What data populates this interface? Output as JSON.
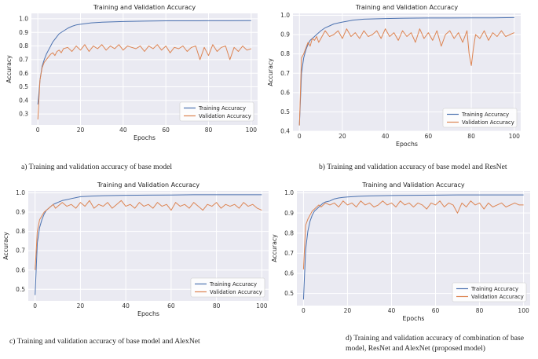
{
  "colors": {
    "training": "#4c72b0",
    "validation": "#dd8452"
  },
  "captions": [
    "a)     Training and validation accuracy of base model",
    "b) Training and validation accuracy of base model and ResNet",
    "c) Training and validation accuracy of base model and AlexNet",
    "d) Training and validation accuracy of combination of base model, ResNet and AlexNet (proposed model)"
  ],
  "chart_data": [
    {
      "type": "line",
      "title": "Training and Validation Accuracy",
      "xlabel": "Epochs",
      "ylabel": "Accuracy",
      "xlim": [
        -3,
        103
      ],
      "ylim": [
        0.22,
        1.04
      ],
      "xticks": [
        0,
        20,
        40,
        60,
        80,
        100
      ],
      "yticks": [
        0.3,
        0.4,
        0.5,
        0.6,
        0.7,
        0.8,
        0.9,
        1.0
      ],
      "legend_position": "bottom-right",
      "series": [
        {
          "name": "Training Accuracy",
          "x": [
            0,
            1,
            2,
            3,
            4,
            5,
            6,
            7,
            8,
            9,
            10,
            12,
            14,
            16,
            18,
            20,
            25,
            30,
            40,
            50,
            60,
            70,
            80,
            90,
            100
          ],
          "y": [
            0.37,
            0.55,
            0.65,
            0.7,
            0.74,
            0.77,
            0.8,
            0.83,
            0.85,
            0.87,
            0.89,
            0.91,
            0.93,
            0.945,
            0.955,
            0.96,
            0.97,
            0.975,
            0.98,
            0.983,
            0.985,
            0.985,
            0.986,
            0.986,
            0.987
          ]
        },
        {
          "name": "Validation Accuracy",
          "x": [
            0,
            1,
            2,
            3,
            4,
            5,
            6,
            7,
            8,
            9,
            10,
            11,
            12,
            14,
            16,
            18,
            20,
            22,
            24,
            26,
            28,
            30,
            32,
            34,
            36,
            38,
            40,
            42,
            44,
            46,
            48,
            50,
            52,
            54,
            56,
            58,
            60,
            62,
            64,
            66,
            68,
            70,
            72,
            74,
            76,
            78,
            80,
            82,
            84,
            86,
            88,
            90,
            92,
            94,
            96,
            98,
            100
          ],
          "y": [
            0.26,
            0.55,
            0.64,
            0.68,
            0.7,
            0.72,
            0.74,
            0.75,
            0.73,
            0.76,
            0.77,
            0.75,
            0.78,
            0.79,
            0.76,
            0.8,
            0.77,
            0.81,
            0.76,
            0.8,
            0.78,
            0.81,
            0.77,
            0.8,
            0.78,
            0.81,
            0.77,
            0.8,
            0.79,
            0.78,
            0.8,
            0.76,
            0.8,
            0.78,
            0.81,
            0.77,
            0.8,
            0.75,
            0.79,
            0.78,
            0.8,
            0.76,
            0.79,
            0.8,
            0.7,
            0.79,
            0.73,
            0.81,
            0.76,
            0.79,
            0.8,
            0.7,
            0.79,
            0.76,
            0.8,
            0.77,
            0.78
          ]
        }
      ]
    },
    {
      "type": "line",
      "title": "Training and Validation Accuracy",
      "xlabel": "Epochs",
      "ylabel": "Accuracy",
      "xlim": [
        -3,
        103
      ],
      "ylim": [
        0.4,
        1.01
      ],
      "xticks": [
        0,
        20,
        40,
        60,
        80,
        100
      ],
      "yticks": [
        0.4,
        0.5,
        0.6,
        0.7,
        0.8,
        0.9,
        1.0
      ],
      "legend_position": "bottom-right",
      "series": [
        {
          "name": "Training Accuracy",
          "x": [
            0,
            1,
            2,
            3,
            4,
            5,
            6,
            7,
            8,
            9,
            10,
            12,
            14,
            16,
            18,
            20,
            25,
            30,
            40,
            50,
            60,
            70,
            80,
            90,
            100
          ],
          "y": [
            0.43,
            0.7,
            0.78,
            0.82,
            0.85,
            0.87,
            0.88,
            0.89,
            0.9,
            0.91,
            0.92,
            0.935,
            0.945,
            0.955,
            0.96,
            0.965,
            0.975,
            0.98,
            0.983,
            0.985,
            0.986,
            0.986,
            0.987,
            0.987,
            0.988
          ]
        },
        {
          "name": "Validation Accuracy",
          "x": [
            0,
            1,
            2,
            3,
            4,
            5,
            6,
            7,
            8,
            9,
            10,
            12,
            14,
            16,
            18,
            20,
            22,
            24,
            26,
            28,
            30,
            32,
            34,
            36,
            38,
            40,
            42,
            44,
            46,
            48,
            50,
            52,
            54,
            56,
            58,
            60,
            62,
            64,
            66,
            68,
            70,
            72,
            74,
            76,
            78,
            79,
            80,
            81,
            82,
            84,
            86,
            88,
            90,
            92,
            94,
            96,
            98,
            100
          ],
          "y": [
            0.43,
            0.78,
            0.8,
            0.83,
            0.86,
            0.84,
            0.88,
            0.87,
            0.89,
            0.86,
            0.88,
            0.92,
            0.89,
            0.9,
            0.92,
            0.88,
            0.93,
            0.89,
            0.91,
            0.88,
            0.92,
            0.89,
            0.9,
            0.92,
            0.88,
            0.93,
            0.89,
            0.91,
            0.87,
            0.92,
            0.89,
            0.91,
            0.86,
            0.93,
            0.88,
            0.91,
            0.87,
            0.92,
            0.84,
            0.9,
            0.92,
            0.88,
            0.91,
            0.86,
            0.92,
            0.8,
            0.74,
            0.83,
            0.9,
            0.88,
            0.92,
            0.87,
            0.91,
            0.89,
            0.92,
            0.89,
            0.9,
            0.91
          ]
        }
      ]
    },
    {
      "type": "line",
      "title": "Training and Validation Accuracy",
      "xlabel": "Epochs",
      "ylabel": "Accuracy",
      "xlim": [
        -3,
        103
      ],
      "ylim": [
        0.44,
        1.01
      ],
      "xticks": [
        0,
        20,
        40,
        60,
        80,
        100
      ],
      "yticks": [
        0.5,
        0.6,
        0.7,
        0.8,
        0.9,
        1.0
      ],
      "legend_position": "bottom-right",
      "series": [
        {
          "name": "Training Accuracy",
          "x": [
            0,
            1,
            2,
            3,
            4,
            5,
            6,
            7,
            8,
            9,
            10,
            12,
            14,
            16,
            18,
            20,
            25,
            30,
            40,
            50,
            60,
            70,
            80,
            90,
            100
          ],
          "y": [
            0.47,
            0.74,
            0.82,
            0.86,
            0.89,
            0.91,
            0.92,
            0.93,
            0.94,
            0.945,
            0.95,
            0.96,
            0.965,
            0.97,
            0.975,
            0.98,
            0.983,
            0.985,
            0.987,
            0.988,
            0.989,
            0.99,
            0.99,
            0.99,
            0.99
          ]
        },
        {
          "name": "Validation Accuracy",
          "x": [
            0,
            1,
            2,
            3,
            4,
            5,
            6,
            7,
            8,
            9,
            10,
            12,
            14,
            16,
            18,
            20,
            22,
            24,
            26,
            28,
            30,
            32,
            34,
            36,
            38,
            40,
            42,
            44,
            46,
            48,
            50,
            52,
            54,
            56,
            58,
            60,
            62,
            64,
            66,
            68,
            70,
            72,
            74,
            76,
            78,
            80,
            82,
            84,
            86,
            88,
            90,
            92,
            94,
            96,
            98,
            100
          ],
          "y": [
            0.6,
            0.8,
            0.86,
            0.88,
            0.9,
            0.91,
            0.92,
            0.93,
            0.94,
            0.92,
            0.93,
            0.95,
            0.93,
            0.94,
            0.92,
            0.95,
            0.93,
            0.96,
            0.92,
            0.94,
            0.93,
            0.95,
            0.92,
            0.94,
            0.96,
            0.93,
            0.94,
            0.92,
            0.95,
            0.93,
            0.94,
            0.92,
            0.95,
            0.93,
            0.94,
            0.91,
            0.95,
            0.93,
            0.94,
            0.92,
            0.95,
            0.93,
            0.91,
            0.94,
            0.93,
            0.95,
            0.92,
            0.94,
            0.93,
            0.94,
            0.92,
            0.95,
            0.93,
            0.94,
            0.92,
            0.91
          ]
        }
      ]
    },
    {
      "type": "line",
      "title": "Training and Validation Accuracy",
      "xlabel": "Epochs",
      "ylabel": "Accuracy",
      "xlim": [
        -3,
        103
      ],
      "ylim": [
        0.44,
        1.01
      ],
      "xticks": [
        0,
        20,
        40,
        60,
        80,
        100
      ],
      "yticks": [
        0.5,
        0.6,
        0.7,
        0.8,
        0.9,
        1.0
      ],
      "legend_position": "bottom-right",
      "series": [
        {
          "name": "Training Accuracy",
          "x": [
            0,
            1,
            2,
            3,
            4,
            5,
            6,
            7,
            8,
            9,
            10,
            12,
            14,
            16,
            18,
            20,
            25,
            30,
            40,
            50,
            60,
            70,
            80,
            90,
            100
          ],
          "y": [
            0.47,
            0.72,
            0.81,
            0.86,
            0.89,
            0.91,
            0.92,
            0.93,
            0.94,
            0.95,
            0.955,
            0.96,
            0.97,
            0.975,
            0.978,
            0.98,
            0.983,
            0.985,
            0.987,
            0.988,
            0.989,
            0.99,
            0.99,
            0.99,
            0.99
          ]
        },
        {
          "name": "Validation Accuracy",
          "x": [
            0,
            1,
            2,
            3,
            4,
            5,
            6,
            7,
            8,
            9,
            10,
            12,
            14,
            16,
            18,
            20,
            22,
            24,
            26,
            28,
            30,
            32,
            34,
            36,
            38,
            40,
            42,
            44,
            46,
            48,
            50,
            52,
            54,
            56,
            58,
            60,
            62,
            64,
            66,
            68,
            70,
            72,
            74,
            76,
            78,
            80,
            82,
            84,
            86,
            88,
            90,
            92,
            94,
            96,
            98,
            100
          ],
          "y": [
            0.62,
            0.84,
            0.87,
            0.89,
            0.91,
            0.92,
            0.93,
            0.94,
            0.93,
            0.94,
            0.95,
            0.94,
            0.95,
            0.93,
            0.96,
            0.94,
            0.95,
            0.93,
            0.96,
            0.94,
            0.95,
            0.93,
            0.94,
            0.96,
            0.94,
            0.95,
            0.93,
            0.96,
            0.94,
            0.95,
            0.93,
            0.95,
            0.94,
            0.92,
            0.95,
            0.94,
            0.96,
            0.93,
            0.95,
            0.94,
            0.9,
            0.95,
            0.93,
            0.96,
            0.94,
            0.95,
            0.92,
            0.95,
            0.93,
            0.94,
            0.95,
            0.93,
            0.94,
            0.95,
            0.94,
            0.94
          ]
        }
      ]
    }
  ]
}
